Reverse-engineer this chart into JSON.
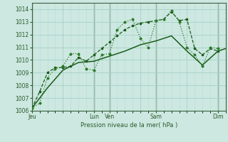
{
  "background_color": "#cce8e0",
  "grid_color_major": "#a8cfc8",
  "grid_color_minor": "#b8dcd4",
  "line_color1": "#1a5c1a",
  "line_color2": "#2d7a2d",
  "ylabel": "Pression niveau de la mer( hPa )",
  "ylim": [
    1006.0,
    1014.5
  ],
  "yticks": [
    1006,
    1007,
    1008,
    1009,
    1010,
    1011,
    1012,
    1013,
    1014
  ],
  "xtick_labels": [
    "Jeu",
    "",
    "Lun",
    "Ven",
    "",
    "Sam",
    "",
    "Dim"
  ],
  "xtick_positions": [
    0,
    48,
    96,
    120,
    168,
    192,
    240,
    288
  ],
  "vline_positions": [
    0,
    96,
    120,
    192,
    288
  ],
  "total_hours": 300,
  "series1_dotted": {
    "x": [
      0,
      12,
      24,
      36,
      48,
      60,
      72,
      84,
      96,
      108,
      120,
      132,
      144,
      156,
      168,
      180,
      192,
      204,
      216,
      228,
      240,
      252,
      264,
      276,
      288
    ],
    "y": [
      1006.2,
      1006.6,
      1008.6,
      1009.3,
      1009.5,
      1010.5,
      1010.5,
      1009.3,
      1009.2,
      1010.4,
      1010.5,
      1012.4,
      1013.0,
      1013.2,
      1011.7,
      1011.0,
      1013.1,
      1013.2,
      1013.9,
      1013.0,
      1011.0,
      1010.4,
      1009.5,
      1011.0,
      1010.9
    ]
  },
  "series2_dashed": {
    "x": [
      0,
      12,
      24,
      36,
      48,
      60,
      72,
      84,
      96,
      108,
      120,
      132,
      144,
      156,
      168,
      180,
      192,
      204,
      216,
      228,
      240,
      252,
      264,
      276,
      288
    ],
    "y": [
      1006.2,
      1007.5,
      1009.0,
      1009.4,
      1009.4,
      1009.5,
      1010.2,
      1009.9,
      1010.4,
      1010.9,
      1011.4,
      1011.9,
      1012.4,
      1012.7,
      1012.9,
      1013.0,
      1013.1,
      1013.2,
      1013.8,
      1013.1,
      1013.2,
      1010.9,
      1010.4,
      1010.9,
      1010.7
    ]
  },
  "series3_solid": {
    "x": [
      0,
      24,
      48,
      72,
      96,
      120,
      144,
      168,
      192,
      216,
      240,
      264,
      288,
      300
    ],
    "y": [
      1006.2,
      1007.8,
      1009.2,
      1009.8,
      1009.9,
      1010.3,
      1010.7,
      1011.2,
      1011.5,
      1011.9,
      1010.7,
      1009.6,
      1010.7,
      1010.9
    ]
  }
}
